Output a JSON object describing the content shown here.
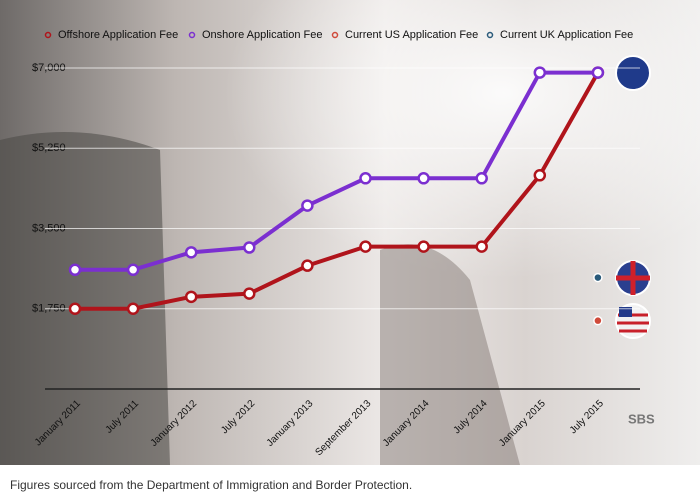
{
  "chart_data": {
    "type": "line",
    "categories": [
      "January 2011",
      "July 2011",
      "January 2012",
      "July 2012",
      "January 2013",
      "September 2013",
      "January 2014",
      "July 2014",
      "January 2015",
      "July 2015"
    ],
    "series": [
      {
        "name": "Offshore Application Fee",
        "color": "#b0141b",
        "values": [
          1750,
          1750,
          2010,
          2080,
          2690,
          3105,
          3105,
          3105,
          4660,
          6900
        ]
      },
      {
        "name": "Onshore Application Fee",
        "color": "#7b2fd0",
        "values": [
          2600,
          2600,
          2980,
          3085,
          4000,
          4595,
          4595,
          4595,
          6900,
          6900
        ]
      },
      {
        "name": "Current US Application Fee",
        "color": "#d04a3a",
        "values": [
          null,
          null,
          null,
          null,
          null,
          null,
          null,
          null,
          null,
          1490
        ]
      },
      {
        "name": "Current UK Application Fee",
        "color": "#2a5a7a",
        "values": [
          null,
          null,
          null,
          null,
          null,
          null,
          null,
          null,
          null,
          2430
        ]
      }
    ],
    "ylim": [
      0,
      7000
    ],
    "yticks": [
      {
        "value": 1750,
        "label": "$1,750"
      },
      {
        "value": 3500,
        "label": "$3,500"
      },
      {
        "value": 5250,
        "label": "$5,250"
      },
      {
        "value": 7000,
        "label": "$7,000"
      }
    ],
    "grid": true,
    "legend": "top",
    "logo": "SBS",
    "caption": "Figures sourced from the Department of Immigration and Border Protection."
  }
}
